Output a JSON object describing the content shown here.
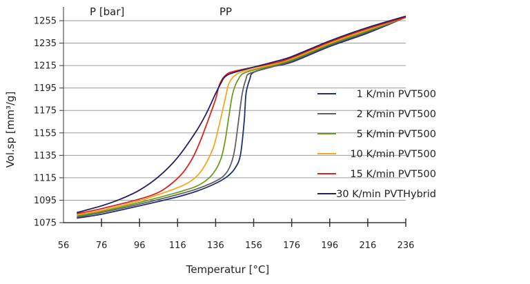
{
  "chart_data": {
    "type": "line",
    "title": "PP",
    "corner_label": "P [bar]",
    "xlabel": "Temperatur [°C]",
    "ylabel": "Vol.sp [mm³/g]",
    "xlim": [
      56,
      236
    ],
    "ylim": [
      1075,
      1260
    ],
    "x_ticks": [
      56,
      76,
      96,
      116,
      136,
      156,
      176,
      196,
      216,
      236
    ],
    "y_ticks": [
      1075,
      1095,
      1115,
      1135,
      1155,
      1175,
      1195,
      1215,
      1235,
      1255
    ],
    "grid": "horizontal",
    "legend_position": "right",
    "series": [
      {
        "name": "1 K/min PVT500",
        "color": "#1f2f6e",
        "points": [
          [
            63,
            1079
          ],
          [
            76,
            1082.5
          ],
          [
            96,
            1090
          ],
          [
            116,
            1098
          ],
          [
            126,
            1103
          ],
          [
            136,
            1110
          ],
          [
            142,
            1116
          ],
          [
            146,
            1123
          ],
          [
            149,
            1135
          ],
          [
            151,
            1165
          ],
          [
            152,
            1190
          ],
          [
            154,
            1203
          ],
          [
            156,
            1209
          ],
          [
            166,
            1214
          ],
          [
            176,
            1218
          ],
          [
            196,
            1232
          ],
          [
            216,
            1244
          ],
          [
            236,
            1258
          ]
        ]
      },
      {
        "name": "2 K/min PVT500",
        "color": "#5f5f5f",
        "points": [
          [
            63,
            1080
          ],
          [
            76,
            1084
          ],
          [
            96,
            1091.5
          ],
          [
            116,
            1100
          ],
          [
            126,
            1105
          ],
          [
            136,
            1112
          ],
          [
            141,
            1118
          ],
          [
            144,
            1127
          ],
          [
            146,
            1140
          ],
          [
            148,
            1165
          ],
          [
            150,
            1190
          ],
          [
            152,
            1203
          ],
          [
            154,
            1208
          ],
          [
            166,
            1214
          ],
          [
            176,
            1219
          ],
          [
            196,
            1233
          ],
          [
            216,
            1245
          ],
          [
            236,
            1258
          ]
        ]
      },
      {
        "name": "5 K/min PVT500",
        "color": "#6a9a1f",
        "points": [
          [
            63,
            1081
          ],
          [
            76,
            1085
          ],
          [
            96,
            1093
          ],
          [
            116,
            1102
          ],
          [
            126,
            1107.5
          ],
          [
            132,
            1114
          ],
          [
            136,
            1122
          ],
          [
            139,
            1133
          ],
          [
            141,
            1148
          ],
          [
            143,
            1170
          ],
          [
            145,
            1190
          ],
          [
            148,
            1203
          ],
          [
            152,
            1209
          ],
          [
            166,
            1215
          ],
          [
            176,
            1220
          ],
          [
            196,
            1234
          ],
          [
            216,
            1246
          ],
          [
            236,
            1258
          ]
        ]
      },
      {
        "name": "10 K/min PVT500",
        "color": "#f5a623",
        "points": [
          [
            63,
            1082
          ],
          [
            76,
            1086
          ],
          [
            96,
            1094.5
          ],
          [
            111,
            1103
          ],
          [
            121,
            1110
          ],
          [
            127,
            1118
          ],
          [
            131,
            1128
          ],
          [
            135,
            1143
          ],
          [
            138,
            1163
          ],
          [
            141,
            1185
          ],
          [
            143,
            1199
          ],
          [
            146,
            1206
          ],
          [
            151,
            1210
          ],
          [
            166,
            1216
          ],
          [
            176,
            1221
          ],
          [
            196,
            1235
          ],
          [
            216,
            1247
          ],
          [
            236,
            1258
          ]
        ]
      },
      {
        "name": "15 K/min PVT500",
        "color": "#d9231b",
        "points": [
          [
            63,
            1083
          ],
          [
            76,
            1087.5
          ],
          [
            96,
            1096
          ],
          [
            106,
            1102
          ],
          [
            113,
            1110
          ],
          [
            119,
            1120
          ],
          [
            124,
            1133
          ],
          [
            128,
            1148
          ],
          [
            132,
            1166
          ],
          [
            136,
            1185
          ],
          [
            138,
            1198
          ],
          [
            141,
            1206
          ],
          [
            146,
            1210
          ],
          [
            166,
            1217
          ],
          [
            176,
            1222
          ],
          [
            196,
            1236
          ],
          [
            216,
            1248
          ],
          [
            236,
            1258
          ]
        ]
      },
      {
        "name": "30 K/min PVTHybrid",
        "color": "#2a1a5e",
        "points": [
          [
            63,
            1084
          ],
          [
            76,
            1090
          ],
          [
            86,
            1096
          ],
          [
            96,
            1104
          ],
          [
            106,
            1116
          ],
          [
            116,
            1133
          ],
          [
            126,
            1157
          ],
          [
            131,
            1172
          ],
          [
            136,
            1190
          ],
          [
            139,
            1200
          ],
          [
            141,
            1205
          ],
          [
            146,
            1209
          ],
          [
            166,
            1218
          ],
          [
            176,
            1223
          ],
          [
            196,
            1237
          ],
          [
            216,
            1249
          ],
          [
            236,
            1259
          ]
        ]
      }
    ]
  }
}
